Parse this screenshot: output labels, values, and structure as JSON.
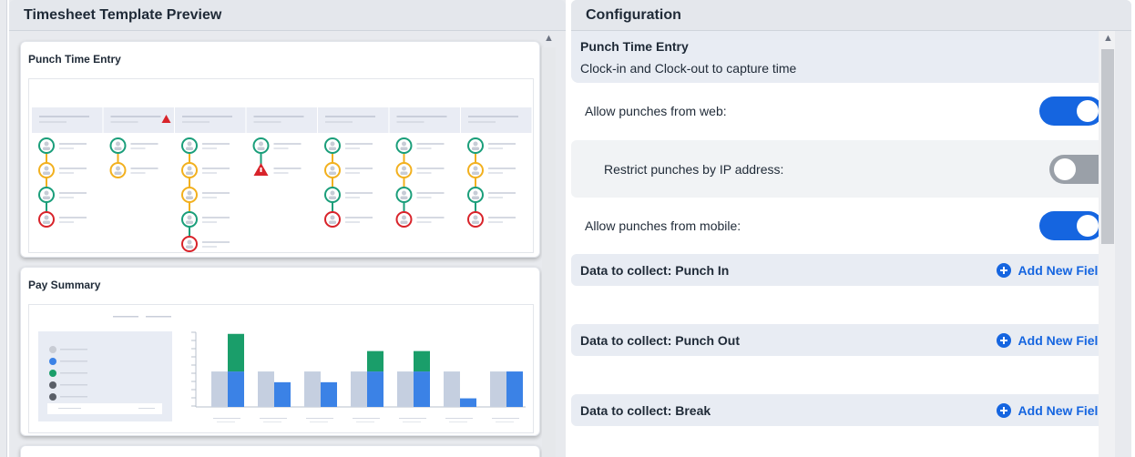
{
  "left_panel": {
    "title": "Timesheet Template Preview",
    "cards": [
      {
        "title": "Punch Time Entry"
      },
      {
        "title": "Pay Summary"
      }
    ]
  },
  "right_panel": {
    "title": "Configuration",
    "punch_time_entry": {
      "title": "Punch Time Entry",
      "subtitle": "Clock-in and Clock-out to capture time"
    },
    "settings": [
      {
        "label": "Allow punches from web:",
        "enabled": true
      },
      {
        "label": "Restrict punches by IP address:",
        "enabled": false
      },
      {
        "label": "Allow punches from mobile:",
        "enabled": true
      }
    ],
    "sections": [
      {
        "title": "Data to collect: Punch In",
        "action": "Add New Field"
      },
      {
        "title": "Data to collect: Punch Out",
        "action": "Add New Field"
      },
      {
        "title": "Data to collect: Break",
        "action": "Add New Field"
      }
    ]
  },
  "colors": {
    "accent": "#1565e0",
    "punch_in": "#1a9e7a",
    "punch_break": "#f2b01e",
    "punch_out": "#d8232a",
    "bar_gray": "#c5cfe0",
    "bar_blue": "#3b82e6",
    "bar_green": "#1a9e6a"
  },
  "preview": {
    "punch_columns": [
      {
        "stages": [
          "in",
          "break",
          "in",
          "out"
        ],
        "alert": false
      },
      {
        "stages": [
          "in",
          "break"
        ],
        "alert": true
      },
      {
        "stages": [
          "in",
          "break",
          "break",
          "in",
          "out"
        ],
        "alert": false
      },
      {
        "stages": [
          "in",
          "alert"
        ],
        "alert": false
      },
      {
        "stages": [
          "in",
          "break",
          "in",
          "out"
        ],
        "alert": false
      },
      {
        "stages": [
          "in",
          "break",
          "in",
          "out"
        ],
        "alert": false
      },
      {
        "stages": [
          "in",
          "break",
          "in",
          "out"
        ],
        "alert": false
      }
    ],
    "pay_bars": [
      {
        "gray": 0.33,
        "blue": 0.33,
        "green": 0.35
      },
      {
        "gray": 0.33,
        "blue": 0.23,
        "green": 0
      },
      {
        "gray": 0.33,
        "blue": 0.23,
        "green": 0
      },
      {
        "gray": 0.33,
        "blue": 0.33,
        "green": 0.19
      },
      {
        "gray": 0.33,
        "blue": 0.33,
        "green": 0.19
      },
      {
        "gray": 0.33,
        "blue": 0.08,
        "green": 0
      },
      {
        "gray": 0.33,
        "blue": 0.33,
        "green": 0
      }
    ]
  }
}
